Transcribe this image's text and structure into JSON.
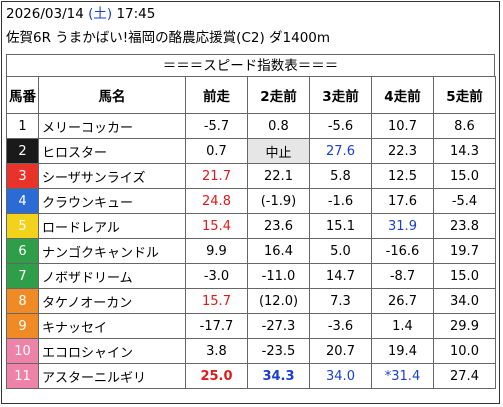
{
  "header": {
    "date": "2026/03/14",
    "dow": "(土)",
    "time": "17:45",
    "race": "佐賀6R うまかばい!福岡の酪農応援賞(C2) ダ1400m",
    "banner": "＝＝＝スピード指数表＝＝＝"
  },
  "columns": [
    "馬番",
    "馬名",
    "前走",
    "2走前",
    "3走前",
    "4走前",
    "5走前"
  ],
  "colors": {
    "frame1": "#ffffff",
    "frame2": "#1a1a1a",
    "frame3": "#e8332a",
    "frame4": "#2a6bd6",
    "frame5": "#f2d21b",
    "frame6": "#2e9e48",
    "frame7": "#f08a24",
    "frame8": "#ee82a8",
    "red": "#e01a1a",
    "blue": "#1a3fd0"
  },
  "rows": [
    {
      "no": "1",
      "name": "メリーコッカー",
      "r": [
        "-5.7",
        "0.8",
        "-5.6",
        "10.7",
        "8.6"
      ]
    },
    {
      "no": "2",
      "name": "ヒロスター",
      "r": [
        "0.7",
        "中止",
        "27.6",
        "22.3",
        "14.3"
      ]
    },
    {
      "no": "3",
      "name": "シーザサンライズ",
      "r": [
        "21.7",
        "22.1",
        "5.8",
        "12.5",
        "15.0"
      ]
    },
    {
      "no": "4",
      "name": "クラウンキュー",
      "r": [
        "24.8",
        "(-1.9)",
        "-1.6",
        "17.6",
        "-5.4"
      ]
    },
    {
      "no": "5",
      "name": "ロードレアル",
      "r": [
        "15.4",
        "23.6",
        "15.1",
        "31.9",
        "23.8"
      ]
    },
    {
      "no": "6",
      "name": "ナンゴクキャンドル",
      "r": [
        "9.9",
        "16.4",
        "5.0",
        "-16.6",
        "19.7"
      ]
    },
    {
      "no": "7",
      "name": "ノボザドリーム",
      "r": [
        "-3.0",
        "-11.0",
        "14.7",
        "-8.7",
        "15.0"
      ]
    },
    {
      "no": "8",
      "name": "タケノオーカン",
      "r": [
        "15.7",
        "(12.0)",
        "7.3",
        "26.7",
        "34.0"
      ]
    },
    {
      "no": "9",
      "name": "キナッセイ",
      "r": [
        "-17.7",
        "-27.3",
        "-3.6",
        "1.4",
        "29.9"
      ]
    },
    {
      "no": "10",
      "name": "エコロシャイン",
      "r": [
        "3.8",
        "-23.5",
        "20.7",
        "19.4",
        "10.0"
      ]
    },
    {
      "no": "11",
      "name": "アスターニルギリ",
      "r": [
        "25.0",
        "34.3",
        "34.0",
        "*31.4",
        "27.4"
      ]
    }
  ]
}
